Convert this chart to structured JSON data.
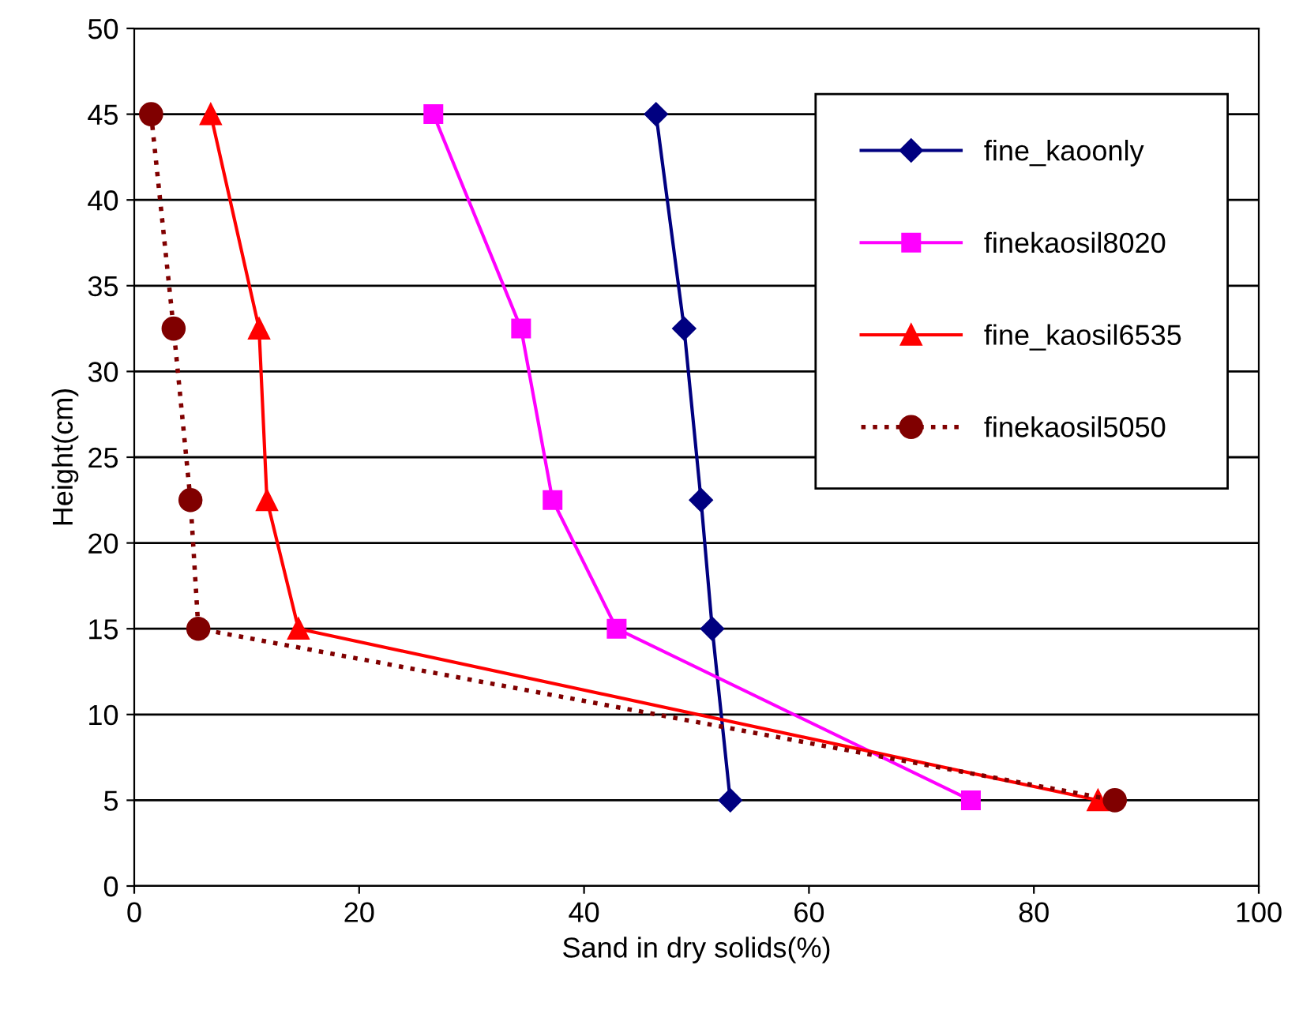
{
  "chart_data": {
    "type": "line",
    "xlabel": "Sand in dry solids(%)",
    "ylabel": "Height(cm)",
    "xlim": [
      0,
      100
    ],
    "xticks": [
      0,
      20,
      40,
      60,
      80,
      100
    ],
    "ylim": [
      0,
      50
    ],
    "yticks": [
      0,
      5,
      10,
      15,
      20,
      25,
      30,
      35,
      40,
      45,
      50
    ],
    "grid": "y",
    "legend": "top right",
    "series": [
      {
        "name": "fine_kaoonly",
        "color": "#000080",
        "marker": "diamond",
        "line_style": "solid",
        "x": [
          46.4,
          48.9,
          50.4,
          51.4,
          53.0
        ],
        "values": [
          45,
          32.5,
          22.5,
          15,
          5
        ]
      },
      {
        "name": "finekaosil8020",
        "color": "#ff00ff",
        "marker": "square",
        "line_style": "solid",
        "x": [
          26.6,
          34.4,
          37.2,
          42.9,
          74.4
        ],
        "values": [
          45,
          32.5,
          22.5,
          15,
          5
        ]
      },
      {
        "name": "fine_kaosil6535",
        "color": "#ff0000",
        "marker": "triangle",
        "line_style": "solid",
        "x": [
          6.8,
          11.1,
          11.8,
          14.6,
          85.7
        ],
        "values": [
          45,
          32.5,
          22.5,
          15,
          5
        ]
      },
      {
        "name": "finekaosil5050",
        "color": "#800000",
        "marker": "circle",
        "line_style": "dotted",
        "x": [
          1.5,
          3.5,
          5.0,
          5.7,
          87.2
        ],
        "values": [
          45,
          32.5,
          22.5,
          15,
          5
        ]
      }
    ]
  }
}
